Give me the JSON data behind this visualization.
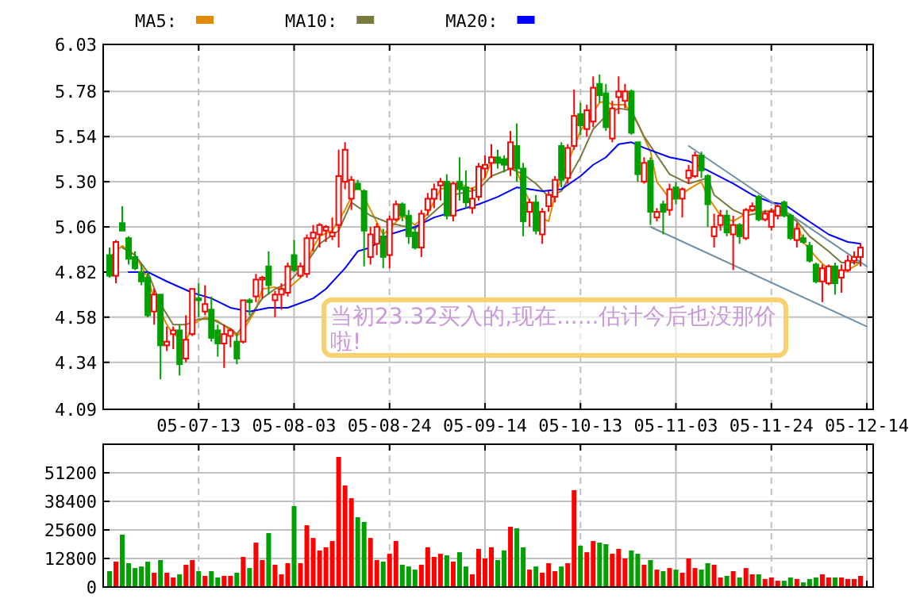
{
  "chart_data": [
    {
      "type": "candlestick",
      "legend": "top",
      "grid": true,
      "categories": [
        null,
        null,
        null,
        null,
        null,
        null,
        null,
        null,
        null,
        null,
        null,
        null,
        null,
        null,
        "05-07-13",
        null,
        null,
        null,
        null,
        null,
        null,
        null,
        null,
        null,
        null,
        null,
        null,
        null,
        null,
        "05-08-03",
        null,
        null,
        null,
        null,
        null,
        null,
        null,
        null,
        null,
        null,
        null,
        null,
        null,
        null,
        "05-08-24",
        null,
        null,
        null,
        null,
        null,
        null,
        null,
        null,
        null,
        null,
        null,
        null,
        null,
        null,
        "05-09-14",
        null,
        null,
        null,
        null,
        null,
        null,
        null,
        null,
        null,
        null,
        null,
        null,
        null,
        null,
        "05-10-13",
        null,
        null,
        null,
        null,
        null,
        null,
        null,
        null,
        null,
        null,
        null,
        null,
        null,
        null,
        "05-11-03",
        null,
        null,
        null,
        null,
        null,
        null,
        null,
        null,
        null,
        null,
        null,
        null,
        null,
        null,
        "05-11-24",
        null,
        null,
        null,
        null,
        null,
        null,
        null,
        null,
        null,
        null,
        null,
        null,
        null,
        null,
        "05-12-14"
      ],
      "ylim": [
        4.09,
        6.03
      ],
      "yticks": [
        4.09,
        4.34,
        4.58,
        4.82,
        5.06,
        {
          "value": 5.3,
          "label": "5.30"
        },
        5.54,
        5.78,
        6.03
      ],
      "ohlc": [
        [
          4.91,
          4.95,
          4.79,
          4.8
        ],
        [
          4.8,
          4.99,
          4.76,
          4.98
        ],
        [
          5.08,
          5.17,
          5.04,
          5.04
        ],
        [
          5.0,
          5.01,
          4.86,
          4.89
        ],
        [
          4.9,
          4.93,
          4.83,
          4.84
        ],
        [
          4.82,
          4.86,
          4.75,
          4.77
        ],
        [
          4.79,
          4.82,
          4.58,
          4.59
        ],
        [
          4.61,
          4.73,
          4.54,
          4.7
        ],
        [
          4.7,
          4.7,
          4.25,
          4.43
        ],
        [
          4.43,
          4.53,
          4.4,
          4.45
        ],
        [
          4.49,
          4.53,
          4.41,
          4.51
        ],
        [
          4.51,
          4.54,
          4.27,
          4.33
        ],
        [
          4.36,
          4.59,
          4.34,
          4.46
        ],
        [
          4.49,
          4.73,
          4.48,
          4.73
        ],
        [
          4.68,
          4.76,
          4.58,
          4.67
        ],
        [
          4.61,
          4.75,
          4.59,
          4.65
        ],
        [
          4.62,
          4.69,
          4.45,
          4.47
        ],
        [
          4.51,
          4.54,
          4.37,
          4.44
        ],
        [
          4.44,
          4.54,
          4.31,
          4.49
        ],
        [
          4.48,
          4.52,
          4.42,
          4.51
        ],
        [
          4.45,
          4.49,
          4.33,
          4.36
        ],
        [
          4.45,
          4.67,
          4.44,
          4.67
        ],
        [
          4.67,
          4.68,
          4.59,
          4.66
        ],
        [
          4.69,
          4.81,
          4.66,
          4.78
        ],
        [
          4.78,
          4.8,
          4.68,
          4.79
        ],
        [
          4.85,
          4.93,
          4.7,
          4.75
        ],
        [
          4.67,
          4.72,
          4.58,
          4.7
        ],
        [
          4.7,
          4.76,
          4.62,
          4.73
        ],
        [
          4.71,
          4.87,
          4.69,
          4.85
        ],
        [
          4.91,
          4.99,
          4.82,
          4.83
        ],
        [
          4.8,
          4.87,
          4.79,
          4.85
        ],
        [
          4.81,
          5.02,
          4.79,
          5.0
        ],
        [
          5.0,
          5.07,
          4.93,
          5.03
        ],
        [
          5.02,
          5.08,
          4.95,
          5.07
        ],
        [
          5.04,
          5.07,
          4.98,
          5.06
        ],
        [
          5.01,
          5.11,
          4.99,
          5.03
        ],
        [
          5.07,
          5.47,
          4.95,
          5.33
        ],
        [
          5.3,
          5.51,
          5.26,
          5.47
        ],
        [
          5.21,
          5.33,
          5.15,
          5.31
        ],
        [
          5.29,
          5.31,
          5.26,
          5.26
        ],
        [
          5.25,
          5.26,
          4.85,
          5.04
        ],
        [
          4.9,
          5.06,
          4.86,
          5.02
        ],
        [
          4.97,
          5.08,
          4.91,
          5.06
        ],
        [
          5.01,
          5.05,
          4.84,
          4.9
        ],
        [
          4.91,
          5.12,
          4.84,
          5.1
        ],
        [
          5.1,
          5.2,
          5.09,
          5.18
        ],
        [
          5.18,
          5.19,
          5.09,
          5.12
        ],
        [
          5.12,
          5.15,
          4.97,
          5.01
        ],
        [
          5.03,
          5.05,
          4.94,
          4.95
        ],
        [
          4.95,
          5.15,
          4.9,
          5.13
        ],
        [
          5.15,
          5.24,
          5.12,
          5.21
        ],
        [
          5.21,
          5.29,
          5.16,
          5.26
        ],
        [
          5.28,
          5.32,
          5.2,
          5.3
        ],
        [
          5.3,
          5.34,
          5.1,
          5.12
        ],
        [
          5.12,
          5.3,
          5.09,
          5.29
        ],
        [
          5.3,
          5.43,
          5.2,
          5.26
        ],
        [
          5.27,
          5.36,
          5.16,
          5.19
        ],
        [
          5.16,
          5.27,
          5.13,
          5.21
        ],
        [
          5.22,
          5.4,
          5.2,
          5.38
        ],
        [
          5.37,
          5.44,
          5.32,
          5.39
        ],
        [
          5.4,
          5.5,
          5.32,
          5.43
        ],
        [
          5.43,
          5.47,
          5.37,
          5.4
        ],
        [
          5.42,
          5.44,
          5.35,
          5.39
        ],
        [
          5.37,
          5.57,
          5.33,
          5.51
        ],
        [
          5.49,
          5.61,
          5.3,
          5.37
        ],
        [
          5.37,
          5.4,
          5.01,
          5.09
        ],
        [
          5.14,
          5.21,
          5.06,
          5.19
        ],
        [
          5.19,
          5.23,
          5.02,
          5.04
        ],
        [
          5.02,
          5.16,
          4.97,
          5.14
        ],
        [
          5.17,
          5.25,
          5.14,
          5.23
        ],
        [
          5.22,
          5.33,
          5.19,
          5.31
        ],
        [
          5.49,
          5.51,
          5.27,
          5.31
        ],
        [
          5.32,
          5.5,
          5.29,
          5.48
        ],
        [
          5.49,
          5.79,
          5.47,
          5.65
        ],
        [
          5.66,
          5.72,
          5.55,
          5.6
        ],
        [
          5.58,
          5.71,
          5.54,
          5.68
        ],
        [
          5.62,
          5.86,
          5.59,
          5.8
        ],
        [
          5.82,
          5.87,
          5.72,
          5.76
        ],
        [
          5.77,
          5.82,
          5.57,
          5.59
        ],
        [
          5.53,
          5.73,
          5.51,
          5.69
        ],
        [
          5.75,
          5.86,
          5.66,
          5.78
        ],
        [
          5.73,
          5.82,
          5.69,
          5.78
        ],
        [
          5.78,
          5.79,
          5.55,
          5.56
        ],
        [
          5.51,
          5.51,
          5.3,
          5.34
        ],
        [
          5.3,
          5.43,
          5.29,
          5.4
        ],
        [
          5.41,
          5.43,
          5.07,
          5.14
        ],
        [
          5.11,
          5.16,
          5.09,
          5.14
        ],
        [
          5.18,
          5.2,
          5.02,
          5.14
        ],
        [
          5.15,
          5.29,
          5.12,
          5.26
        ],
        [
          5.27,
          5.3,
          5.18,
          5.21
        ],
        [
          5.21,
          5.27,
          5.11,
          5.26
        ],
        [
          5.32,
          5.39,
          5.29,
          5.36
        ],
        [
          5.33,
          5.46,
          5.32,
          5.44
        ],
        [
          5.44,
          5.46,
          5.32,
          5.36
        ],
        [
          5.33,
          5.34,
          5.06,
          5.18
        ],
        [
          5.01,
          5.13,
          4.95,
          5.06
        ],
        [
          5.07,
          5.15,
          5.04,
          5.12
        ],
        [
          5.12,
          5.15,
          5.01,
          5.03
        ],
        [
          5.02,
          5.12,
          4.83,
          5.07
        ],
        [
          5.07,
          5.08,
          4.97,
          5.01
        ],
        [
          5.0,
          5.16,
          4.99,
          5.15
        ],
        [
          5.15,
          5.19,
          5.14,
          5.17
        ],
        [
          5.22,
          5.23,
          5.09,
          5.1
        ],
        [
          5.1,
          5.15,
          5.09,
          5.13
        ],
        [
          5.06,
          5.16,
          5.04,
          5.14
        ],
        [
          5.12,
          5.18,
          5.1,
          5.17
        ],
        [
          5.19,
          5.2,
          5.11,
          5.12
        ],
        [
          5.12,
          5.13,
          4.99,
          5.0
        ],
        [
          4.99,
          5.08,
          4.95,
          5.05
        ],
        [
          5.0,
          5.02,
          4.97,
          4.98
        ],
        [
          4.96,
          4.98,
          4.87,
          4.88
        ],
        [
          4.86,
          4.87,
          4.76,
          4.77
        ],
        [
          4.77,
          4.86,
          4.66,
          4.84
        ],
        [
          4.76,
          4.86,
          4.75,
          4.85
        ],
        [
          4.85,
          4.87,
          4.7,
          4.76
        ],
        [
          4.79,
          4.86,
          4.71,
          4.83
        ],
        [
          4.83,
          4.91,
          4.82,
          4.88
        ],
        [
          4.88,
          4.93,
          4.86,
          4.9
        ],
        [
          4.9,
          4.97,
          4.85,
          4.95
        ],
        null
      ],
      "colors": [
        "#00a000",
        "#ff0000",
        "#00a000",
        "#00a000",
        "#00a000",
        "#00a000",
        "#00a000",
        "#ff0000",
        "#00a000",
        "#ff0000",
        "#ff0000",
        "#00a000",
        "#ff0000",
        "#ff0000",
        "#00a000",
        "#ff0000",
        "#00a000",
        "#00a000",
        "#ff0000",
        "#ff0000",
        "#00a000",
        "#ff0000",
        "#00a000",
        "#ff0000",
        "#ff0000",
        "#00a000",
        "#ff0000",
        "#ff0000",
        "#ff0000",
        "#00a000",
        "#ff0000",
        "#ff0000",
        "#ff0000",
        "#ff0000",
        "#ff0000",
        "#ff0000",
        "#ff0000",
        "#ff0000",
        "#ff0000",
        "#00a000",
        "#00a000",
        "#ff0000",
        "#ff0000",
        "#00a000",
        "#ff0000",
        "#ff0000",
        "#00a000",
        "#00a000",
        "#00a000",
        "#ff0000",
        "#ff0000",
        "#ff0000",
        "#ff0000",
        "#00a000",
        "#ff0000",
        "#00a000",
        "#00a000",
        "#ff0000",
        "#ff0000",
        "#ff0000",
        "#ff0000",
        "#00a000",
        "#00a000",
        "#ff0000",
        "#00a000",
        "#00a000",
        "#ff0000",
        "#00a000",
        "#ff0000",
        "#ff0000",
        "#ff0000",
        "#00a000",
        "#ff0000",
        "#ff0000",
        "#00a000",
        "#ff0000",
        "#ff0000",
        "#00a000",
        "#00a000",
        "#ff0000",
        "#ff0000",
        "#ff0000",
        "#00a000",
        "#00a000",
        "#ff0000",
        "#00a000",
        "#ff0000",
        "#00a000",
        "#ff0000",
        "#00a000",
        "#ff0000",
        "#ff0000",
        "#ff0000",
        "#00a000",
        "#00a000",
        "#ff0000",
        "#ff0000",
        "#00a000",
        "#ff0000",
        "#00a000",
        "#ff0000",
        "#ff0000",
        "#00a000",
        "#ff0000",
        "#ff0000",
        "#ff0000",
        "#00a000",
        "#00a000",
        "#ff0000",
        "#00a000",
        "#00a000",
        "#00a000",
        "#ff0000",
        "#ff0000",
        "#00a000",
        "#ff0000",
        "#ff0000",
        "#ff0000",
        "#ff0000",
        null
      ],
      "series": [
        {
          "name": "MA5:",
          "type": "line",
          "color": "#e08a00",
          "values": [
            4.9,
            null,
            4.96,
            null,
            4.91,
            null,
            4.79,
            4.68,
            null,
            4.54,
            4.49,
            null,
            4.45,
            4.54,
            null,
            4.58,
            null,
            4.56,
            null,
            4.51,
            4.48,
            4.51,
            null,
            4.62,
            4.73,
            null,
            4.74,
            4.72,
            4.73,
            null,
            4.79,
            null,
            4.95,
            5.01,
            null,
            5.04,
            null,
            5.15,
            null,
            5.29,
            null,
            5.15,
            null,
            5.02,
            5.05,
            null,
            5.12,
            null,
            5.07,
            null,
            5.13,
            null,
            5.26,
            null,
            null,
            5.29,
            null,
            5.26,
            null,
            5.32,
            5.41,
            null,
            5.41,
            5.44,
            null,
            5.27,
            null,
            5.12,
            null,
            5.09,
            5.23,
            null,
            null,
            null,
            5.57,
            5.62,
            null,
            5.72,
            5.73,
            5.71,
            null,
            5.71,
            null,
            5.61,
            null,
            5.46,
            5.3,
            null,
            5.21,
            5.21,
            null,
            5.26,
            null,
            5.3,
            5.22,
            null,
            5.12,
            null,
            5.09,
            5.11,
            null,
            5.15,
            null,
            5.14,
            5.15,
            null,
            5.14,
            null,
            5.09,
            4.98,
            null,
            4.9,
            null,
            4.83,
            4.81,
            null,
            4.83,
            null,
            4.87,
            null
          ]
        },
        {
          "name": "MA10:",
          "type": "line",
          "color": "#7a7a40",
          "values": [
            null,
            null,
            4.95,
            null,
            4.91,
            null,
            4.82,
            null,
            4.65,
            null,
            4.54,
            null,
            4.54,
            null,
            4.57,
            null,
            4.57,
            null,
            null,
            4.52,
            4.49,
            null,
            4.58,
            null,
            4.68,
            null,
            4.73,
            null,
            4.76,
            null,
            null,
            4.87,
            null,
            4.97,
            null,
            null,
            5.04,
            null,
            5.19,
            null,
            null,
            5.12,
            null,
            null,
            5.08,
            null,
            null,
            null,
            5.05,
            null,
            null,
            5.14,
            null,
            null,
            5.23,
            null,
            null,
            null,
            5.26,
            null,
            5.33,
            null,
            null,
            5.37,
            null,
            5.34,
            null,
            5.29,
            null,
            5.22,
            null,
            5.25,
            null,
            null,
            5.43,
            null,
            5.58,
            null,
            5.65,
            null,
            5.69,
            null,
            5.68,
            null,
            5.54,
            null,
            5.44,
            null,
            5.34,
            null,
            null,
            5.29,
            null,
            null,
            5.32,
            5.23,
            null,
            null,
            5.15,
            null,
            5.12,
            null,
            null,
            5.14,
            null,
            5.15,
            null,
            null,
            5.09,
            null,
            5.01,
            null,
            null,
            4.93,
            null,
            4.87,
            null,
            null,
            4.87,
            null
          ]
        },
        {
          "name": "MA20:",
          "type": "line",
          "color": "#0000ff",
          "values": [
            null,
            null,
            null,
            4.82,
            null,
            null,
            4.82,
            null,
            null,
            4.77,
            null,
            null,
            null,
            4.71,
            null,
            null,
            4.68,
            null,
            null,
            4.63,
            null,
            null,
            4.61,
            null,
            null,
            4.63,
            null,
            null,
            4.63,
            null,
            null,
            null,
            4.68,
            null,
            4.73,
            null,
            null,
            4.84,
            null,
            4.93,
            null,
            4.95,
            null,
            null,
            5.02,
            null,
            null,
            null,
            5.06,
            null,
            null,
            5.11,
            null,
            null,
            5.14,
            null,
            null,
            null,
            5.18,
            null,
            null,
            5.22,
            null,
            null,
            5.27,
            null,
            5.26,
            null,
            5.25,
            null,
            null,
            5.26,
            null,
            null,
            5.33,
            null,
            5.39,
            null,
            5.43,
            null,
            5.5,
            null,
            5.51,
            null,
            5.48,
            null,
            null,
            null,
            5.43,
            null,
            null,
            5.41,
            null,
            null,
            5.36,
            null,
            null,
            null,
            5.29,
            null,
            null,
            5.23,
            null,
            null,
            5.19,
            null,
            5.18,
            null,
            null,
            5.11,
            null,
            null,
            null,
            5.02,
            null,
            null,
            4.98,
            null,
            4.97,
            null
          ]
        },
        {
          "type": "line",
          "color": "#7090a8",
          "values": [
            null,
            null,
            null,
            null,
            null,
            null,
            null,
            null,
            null,
            null,
            null,
            null,
            null,
            null,
            null,
            null,
            null,
            null,
            null,
            null,
            null,
            null,
            null,
            null,
            null,
            null,
            null,
            null,
            null,
            null,
            null,
            null,
            null,
            null,
            null,
            null,
            null,
            null,
            null,
            null,
            null,
            null,
            null,
            null,
            null,
            null,
            null,
            null,
            null,
            null,
            null,
            null,
            null,
            null,
            null,
            null,
            null,
            null,
            null,
            null,
            null,
            null,
            null,
            null,
            null,
            null,
            null,
            null,
            null,
            null,
            null,
            null,
            null,
            null,
            null,
            null,
            null,
            null,
            null,
            null,
            null,
            null,
            null,
            null,
            null,
            null,
            null,
            null,
            null,
            null,
            null,
            5.49,
            null,
            null,
            null,
            null,
            null,
            null,
            null,
            null,
            null,
            null,
            null,
            null,
            null,
            null,
            null,
            null,
            null,
            null,
            null,
            null,
            null,
            null,
            null,
            null,
            null,
            null,
            null,
            4.85
          ]
        },
        {
          "type": "line",
          "color": "#7090a8",
          "values": [
            null,
            null,
            null,
            null,
            null,
            null,
            null,
            null,
            null,
            null,
            null,
            null,
            null,
            null,
            null,
            null,
            null,
            null,
            null,
            null,
            null,
            null,
            null,
            null,
            null,
            null,
            null,
            null,
            null,
            null,
            null,
            null,
            null,
            null,
            null,
            null,
            null,
            null,
            null,
            null,
            null,
            null,
            null,
            null,
            null,
            null,
            null,
            null,
            null,
            null,
            null,
            null,
            null,
            null,
            null,
            null,
            null,
            null,
            null,
            null,
            null,
            null,
            null,
            null,
            null,
            null,
            null,
            null,
            null,
            null,
            null,
            null,
            null,
            null,
            null,
            null,
            null,
            null,
            null,
            null,
            null,
            null,
            null,
            null,
            null,
            5.06,
            null,
            null,
            null,
            null,
            null,
            null,
            null,
            null,
            null,
            null,
            null,
            null,
            null,
            null,
            null,
            null,
            null,
            null,
            null,
            null,
            null,
            null,
            null,
            null,
            null,
            null,
            null,
            null,
            null,
            null,
            null,
            null,
            null,
            4.53
          ]
        }
      ],
      "annotations": [
        "当初23.32买入的,现在......估计今后也没那价啦!"
      ]
    },
    {
      "type": "bar",
      "grid": true,
      "tick_labels": "y",
      "categories": [
        null,
        null,
        null,
        null,
        null,
        null,
        null,
        null,
        null,
        null,
        null,
        null,
        null,
        null,
        null,
        null,
        null,
        null,
        null,
        null,
        null,
        null,
        null,
        null,
        null,
        null,
        null,
        null,
        null,
        null,
        null,
        null,
        null,
        null,
        null,
        null,
        null,
        null,
        null,
        null,
        null,
        null,
        null,
        null,
        null,
        null,
        null,
        null,
        null,
        null,
        null,
        null,
        null,
        null,
        null,
        null,
        null,
        null,
        null,
        null,
        null,
        null,
        null,
        null,
        null,
        null,
        null,
        null,
        null,
        null,
        null,
        null,
        null,
        null,
        null,
        null,
        null,
        null,
        null,
        null,
        null,
        null,
        null,
        null,
        null,
        null,
        null,
        null,
        null,
        null,
        null,
        null,
        null,
        null,
        null,
        null,
        null,
        null,
        null,
        null,
        null,
        null,
        null,
        null,
        null,
        null,
        null,
        null,
        null,
        null,
        null,
        null,
        null,
        null,
        null,
        null,
        null,
        null,
        null,
        null
      ],
      "ylim": [
        0,
        64000
      ],
      "yticks": [
        0,
        12800,
        25600,
        38400,
        51200
      ],
      "values": [
        7100,
        11400,
        23500,
        10700,
        8500,
        9200,
        11400,
        6400,
        12100,
        6400,
        4300,
        5700,
        10000,
        12100,
        7100,
        5000,
        7100,
        4300,
        5000,
        5000,
        6400,
        13500,
        8500,
        19900,
        12100,
        24200,
        10000,
        5700,
        10700,
        36300,
        10700,
        27700,
        22000,
        16400,
        17800,
        20600,
        58300,
        45500,
        39800,
        31300,
        29200,
        22000,
        12100,
        11400,
        14900,
        20600,
        10000,
        9200,
        7800,
        10000,
        17800,
        13500,
        14900,
        14200,
        11400,
        15600,
        9200,
        5700,
        17100,
        12800,
        17800,
        12100,
        16400,
        27000,
        26300,
        17800,
        7800,
        9200,
        6400,
        10700,
        7100,
        9200,
        10700,
        43400,
        18500,
        15600,
        20600,
        19900,
        19200,
        14900,
        17100,
        12800,
        16400,
        14900,
        10000,
        12100,
        7800,
        7100,
        8500,
        7800,
        6400,
        12800,
        8500,
        7800,
        10700,
        10000,
        4300,
        5000,
        7100,
        4300,
        8500,
        5700,
        5700,
        3600,
        4300,
        2800,
        2800,
        4300,
        3600,
        2100,
        3600,
        4300,
        5700,
        4300,
        4300,
        4300,
        3600,
        3600,
        5000,
        null
      ],
      "colors": [
        "#00a000",
        "#ff0000",
        "#00a000",
        "#00a000",
        "#00a000",
        "#00a000",
        "#00a000",
        "#ff0000",
        "#00a000",
        "#ff0000",
        "#ff0000",
        "#00a000",
        "#ff0000",
        "#ff0000",
        "#00a000",
        "#ff0000",
        "#00a000",
        "#00a000",
        "#ff0000",
        "#ff0000",
        "#00a000",
        "#ff0000",
        "#00a000",
        "#ff0000",
        "#ff0000",
        "#00a000",
        "#ff0000",
        "#ff0000",
        "#ff0000",
        "#00a000",
        "#ff0000",
        "#ff0000",
        "#ff0000",
        "#ff0000",
        "#ff0000",
        "#ff0000",
        "#ff0000",
        "#ff0000",
        "#ff0000",
        "#00a000",
        "#00a000",
        "#ff0000",
        "#ff0000",
        "#00a000",
        "#ff0000",
        "#ff0000",
        "#00a000",
        "#00a000",
        "#00a000",
        "#ff0000",
        "#ff0000",
        "#ff0000",
        "#ff0000",
        "#00a000",
        "#ff0000",
        "#00a000",
        "#00a000",
        "#ff0000",
        "#ff0000",
        "#ff0000",
        "#ff0000",
        "#00a000",
        "#00a000",
        "#ff0000",
        "#00a000",
        "#00a000",
        "#ff0000",
        "#00a000",
        "#ff0000",
        "#ff0000",
        "#ff0000",
        "#00a000",
        "#ff0000",
        "#ff0000",
        "#00a000",
        "#ff0000",
        "#ff0000",
        "#00a000",
        "#00a000",
        "#ff0000",
        "#ff0000",
        "#ff0000",
        "#00a000",
        "#00a000",
        "#ff0000",
        "#00a000",
        "#ff0000",
        "#00a000",
        "#ff0000",
        "#00a000",
        "#ff0000",
        "#ff0000",
        "#ff0000",
        "#00a000",
        "#00a000",
        "#ff0000",
        "#ff0000",
        "#00a000",
        "#ff0000",
        "#00a000",
        "#ff0000",
        "#ff0000",
        "#00a000",
        "#ff0000",
        "#ff0000",
        "#ff0000",
        "#00a000",
        "#00a000",
        "#ff0000",
        "#00a000",
        "#00a000",
        "#00a000",
        "#ff0000",
        "#ff0000",
        "#00a000",
        "#ff0000",
        "#ff0000",
        "#ff0000",
        "#ff0000",
        null
      ]
    }
  ]
}
